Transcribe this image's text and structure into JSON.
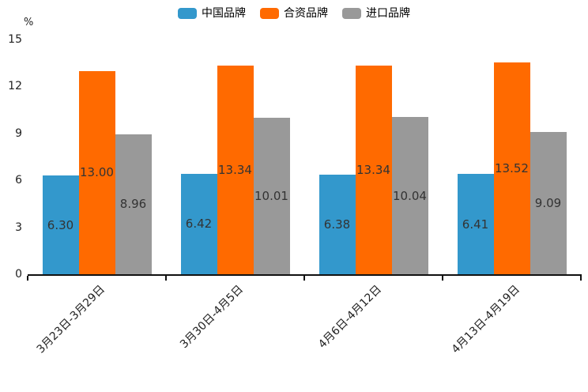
{
  "legend": {
    "items": [
      {
        "label": "中国品牌",
        "color": "#3398cc"
      },
      {
        "label": "合资品牌",
        "color": "#ff6a00"
      },
      {
        "label": "进口品牌",
        "color": "#999999"
      }
    ]
  },
  "y_axis": {
    "unit": "%"
  },
  "chart_data": {
    "type": "bar",
    "title": "",
    "categories": [
      "3月23日-3月29日",
      "3月30日-4月5日",
      "4月6日-4月12日",
      "4月13日-4月19日"
    ],
    "series": [
      {
        "name": "中国品牌",
        "color": "#3398cc",
        "values": [
          6.3,
          6.42,
          6.38,
          6.41
        ],
        "labels": [
          "6.30",
          "6.42",
          "6.38",
          "6.41"
        ]
      },
      {
        "name": "合资品牌",
        "color": "#ff6a00",
        "values": [
          13.0,
          13.34,
          13.34,
          13.52
        ],
        "labels": [
          "13.00",
          "13.34",
          "13.34",
          "13.52"
        ]
      },
      {
        "name": "进口品牌",
        "color": "#999999",
        "values": [
          8.96,
          10.01,
          10.04,
          9.09
        ],
        "labels": [
          "8.96",
          "10.01",
          "10.04",
          "9.09"
        ]
      }
    ],
    "xlabel": "",
    "ylabel": "%",
    "ylim": [
      0,
      15
    ],
    "yticks": [
      0,
      3,
      6,
      9,
      12,
      15
    ],
    "grid": false,
    "legend_position": "top",
    "value_label_position": "inside-center"
  }
}
